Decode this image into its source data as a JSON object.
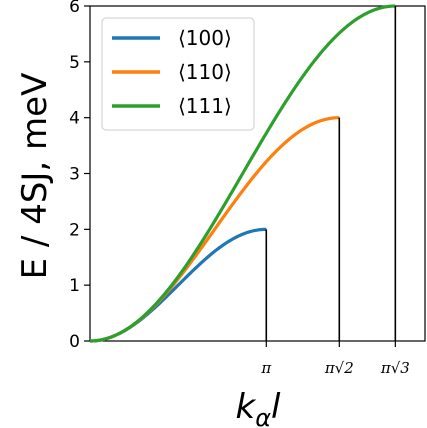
{
  "chart_data": {
    "type": "line",
    "xlabel": "kαl",
    "xlabel_parts": {
      "main": "k",
      "sub": "α",
      "tail": "l"
    },
    "ylabel": "E / 4SJ, meV",
    "ylim": [
      0,
      6
    ],
    "yticks": [
      "0",
      "1",
      "2",
      "3",
      "4",
      "5",
      "6"
    ],
    "xlim": [
      0,
      5.97
    ],
    "xticks": [
      {
        "value": 3.1416,
        "label": "π"
      },
      {
        "value": 4.4429,
        "label": "π√2"
      },
      {
        "value": 5.4414,
        "label": "π√3"
      }
    ],
    "grid": false,
    "legend_position": "top-left",
    "series": [
      {
        "name": "⟨100⟩",
        "color": "#1f77b4",
        "x_max": 3.1416,
        "y_max": 2
      },
      {
        "name": "⟨110⟩",
        "color": "#ff7f0e",
        "x_max": 4.4429,
        "y_max": 4
      },
      {
        "name": "⟨111⟩",
        "color": "#2ca02c",
        "x_max": 5.4414,
        "y_max": 6
      }
    ]
  }
}
